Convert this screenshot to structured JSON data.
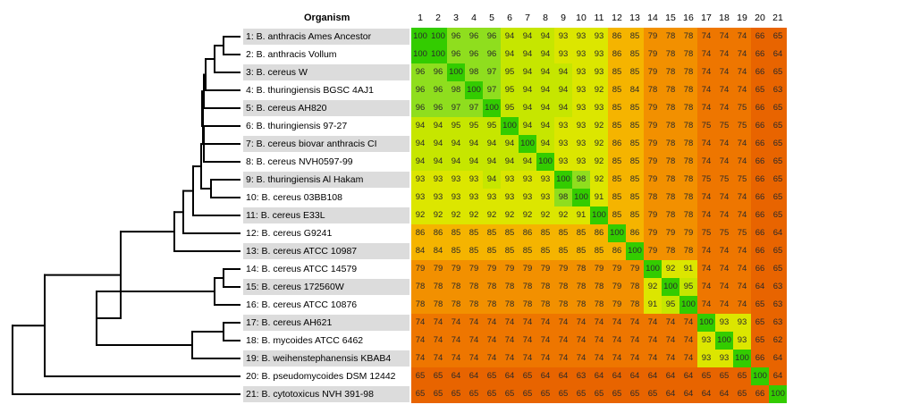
{
  "chart_data": {
    "type": "heatmap",
    "title": "",
    "header_label": "Organism",
    "column_labels": [
      "1",
      "2",
      "3",
      "4",
      "5",
      "6",
      "7",
      "8",
      "9",
      "10",
      "11",
      "12",
      "13",
      "14",
      "15",
      "16",
      "17",
      "18",
      "19",
      "20",
      "21"
    ],
    "row_labels": [
      "1: B. anthracis Ames Ancestor",
      "2: B. anthracis Vollum",
      "3: B. cereus W",
      "4: B. thuringiensis BGSC 4AJ1",
      "5: B. cereus AH820",
      "6: B. thuringiensis 97-27",
      "7: B. cereus biovar anthracis CI",
      "8: B. cereus NVH0597-99",
      "9: B. thuringiensis Al Hakam",
      "10: B. cereus 03BB108",
      "11: B. cereus E33L",
      "12: B. cereus G9241",
      "13: B. cereus ATCC 10987",
      "14: B. cereus ATCC 14579",
      "15: B. cereus 172560W",
      "16: B. cereus ATCC 10876",
      "17: B. cereus AH621",
      "18: B. mycoides ATCC 6462",
      "19: B. weihenstephanensis KBAB4",
      "20: B. pseudomycoides DSM 12442",
      "21: B. cytotoxicus NVH 391-98"
    ],
    "values": [
      [
        100,
        100,
        96,
        96,
        96,
        94,
        94,
        94,
        93,
        93,
        93,
        86,
        85,
        79,
        78,
        78,
        74,
        74,
        74,
        66,
        65
      ],
      [
        100,
        100,
        96,
        96,
        96,
        94,
        94,
        94,
        93,
        93,
        93,
        86,
        85,
        79,
        78,
        78,
        74,
        74,
        74,
        66,
        64
      ],
      [
        96,
        96,
        100,
        98,
        97,
        95,
        94,
        94,
        94,
        93,
        93,
        85,
        85,
        79,
        78,
        78,
        74,
        74,
        74,
        66,
        65
      ],
      [
        96,
        96,
        98,
        100,
        97,
        95,
        94,
        94,
        94,
        93,
        92,
        85,
        84,
        78,
        78,
        78,
        74,
        74,
        74,
        65,
        63
      ],
      [
        96,
        96,
        97,
        97,
        100,
        95,
        94,
        94,
        94,
        93,
        93,
        85,
        85,
        79,
        78,
        78,
        74,
        74,
        75,
        66,
        65
      ],
      [
        94,
        94,
        95,
        95,
        95,
        100,
        94,
        94,
        93,
        93,
        92,
        85,
        85,
        79,
        78,
        78,
        75,
        75,
        75,
        66,
        65
      ],
      [
        94,
        94,
        94,
        94,
        94,
        94,
        100,
        94,
        93,
        93,
        92,
        86,
        85,
        79,
        78,
        78,
        74,
        74,
        74,
        66,
        65
      ],
      [
        94,
        94,
        94,
        94,
        94,
        94,
        94,
        100,
        93,
        93,
        92,
        85,
        85,
        79,
        78,
        78,
        74,
        74,
        74,
        66,
        65
      ],
      [
        93,
        93,
        93,
        93,
        94,
        93,
        93,
        93,
        100,
        98,
        92,
        85,
        85,
        79,
        78,
        78,
        75,
        75,
        75,
        66,
        65
      ],
      [
        93,
        93,
        93,
        93,
        93,
        93,
        93,
        93,
        98,
        100,
        91,
        85,
        85,
        78,
        78,
        78,
        74,
        74,
        74,
        66,
        65
      ],
      [
        92,
        92,
        92,
        92,
        92,
        92,
        92,
        92,
        92,
        91,
        100,
        85,
        85,
        79,
        78,
        78,
        74,
        74,
        74,
        66,
        65
      ],
      [
        86,
        86,
        85,
        85,
        85,
        85,
        86,
        85,
        85,
        85,
        86,
        100,
        86,
        79,
        79,
        79,
        75,
        75,
        75,
        66,
        64
      ],
      [
        84,
        84,
        85,
        85,
        85,
        85,
        85,
        85,
        85,
        85,
        85,
        86,
        100,
        79,
        78,
        78,
        74,
        74,
        74,
        66,
        65
      ],
      [
        79,
        79,
        79,
        79,
        79,
        79,
        79,
        79,
        79,
        78,
        79,
        79,
        79,
        100,
        92,
        91,
        74,
        74,
        74,
        66,
        65
      ],
      [
        78,
        78,
        78,
        78,
        78,
        78,
        78,
        78,
        78,
        78,
        78,
        79,
        78,
        92,
        100,
        95,
        74,
        74,
        74,
        64,
        63
      ],
      [
        78,
        78,
        78,
        78,
        78,
        78,
        78,
        78,
        78,
        78,
        78,
        79,
        78,
        91,
        95,
        100,
        74,
        74,
        74,
        65,
        63
      ],
      [
        74,
        74,
        74,
        74,
        74,
        74,
        74,
        74,
        74,
        74,
        74,
        74,
        74,
        74,
        74,
        74,
        100,
        93,
        93,
        65,
        63
      ],
      [
        74,
        74,
        74,
        74,
        74,
        74,
        74,
        74,
        74,
        74,
        74,
        74,
        74,
        74,
        74,
        74,
        93,
        100,
        93,
        65,
        62
      ],
      [
        74,
        74,
        74,
        74,
        74,
        74,
        74,
        74,
        74,
        74,
        74,
        74,
        74,
        74,
        74,
        74,
        93,
        93,
        100,
        66,
        64
      ],
      [
        65,
        65,
        64,
        64,
        65,
        64,
        65,
        64,
        64,
        63,
        64,
        64,
        64,
        64,
        64,
        64,
        65,
        65,
        65,
        100,
        64
      ],
      [
        65,
        65,
        65,
        65,
        65,
        65,
        65,
        65,
        65,
        65,
        65,
        65,
        65,
        65,
        64,
        64,
        64,
        64,
        65,
        66,
        100
      ]
    ],
    "colors": {
      "v100": "#33cc00",
      "v96": "#8fde1e",
      "v94": "#c6e600",
      "v92": "#dce600",
      "v86": "#f5b400",
      "v79": "#f29000",
      "v74": "#ee7600",
      "v65": "#e86400",
      "row_band": "#dcdcdc",
      "tree_line": "#000000"
    }
  }
}
